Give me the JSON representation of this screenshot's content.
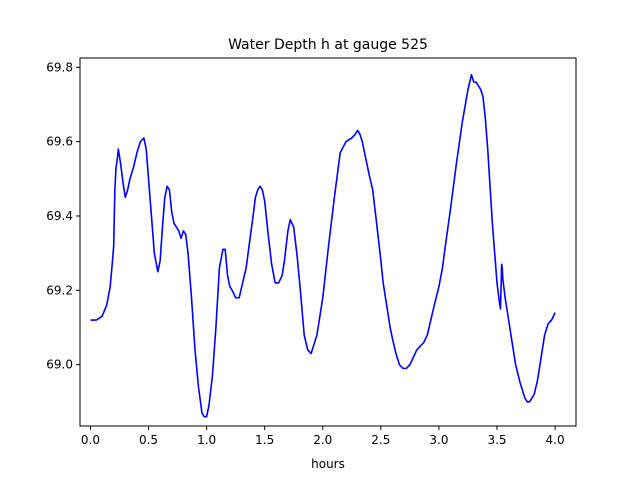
{
  "chart_data": {
    "type": "line",
    "title": "Water Depth h at gauge 525",
    "xlabel": "hours",
    "ylabel": "",
    "xlim": [
      -0.09,
      4.18
    ],
    "ylim": [
      68.835,
      69.825
    ],
    "xticks": [
      0.0,
      0.5,
      1.0,
      1.5,
      2.0,
      2.5,
      3.0,
      3.5,
      4.0
    ],
    "xtick_labels": [
      "0.0",
      "0.5",
      "1.0",
      "1.5",
      "2.0",
      "2.5",
      "3.0",
      "3.5",
      "4.0"
    ],
    "yticks": [
      69.0,
      69.2,
      69.4,
      69.6,
      69.8
    ],
    "ytick_labels": [
      "69.0",
      "69.2",
      "69.4",
      "69.6",
      "69.8"
    ],
    "grid": false,
    "series": [
      {
        "color": "#0000ff",
        "x": [
          0.0,
          0.05,
          0.1,
          0.14,
          0.17,
          0.19,
          0.2,
          0.21,
          0.22,
          0.23,
          0.24,
          0.26,
          0.28,
          0.3,
          0.32,
          0.34,
          0.37,
          0.4,
          0.43,
          0.46,
          0.48,
          0.5,
          0.52,
          0.55,
          0.58,
          0.6,
          0.62,
          0.64,
          0.66,
          0.68,
          0.7,
          0.72,
          0.74,
          0.76,
          0.78,
          0.8,
          0.82,
          0.84,
          0.87,
          0.9,
          0.93,
          0.96,
          0.98,
          1.0,
          1.02,
          1.05,
          1.08,
          1.11,
          1.14,
          1.16,
          1.18,
          1.2,
          1.22,
          1.25,
          1.28,
          1.31,
          1.34,
          1.37,
          1.4,
          1.42,
          1.44,
          1.46,
          1.48,
          1.5,
          1.53,
          1.56,
          1.59,
          1.62,
          1.65,
          1.67,
          1.7,
          1.72,
          1.75,
          1.78,
          1.81,
          1.84,
          1.87,
          1.9,
          1.95,
          2.0,
          2.05,
          2.1,
          2.15,
          2.2,
          2.25,
          2.28,
          2.3,
          2.32,
          2.34,
          2.36,
          2.38,
          2.4,
          2.43,
          2.46,
          2.5,
          2.52,
          2.55,
          2.58,
          2.6,
          2.63,
          2.66,
          2.69,
          2.72,
          2.75,
          2.78,
          2.81,
          2.84,
          2.87,
          2.9,
          2.93,
          2.96,
          3.0,
          3.03,
          3.06,
          3.1,
          3.15,
          3.2,
          3.25,
          3.28,
          3.3,
          3.32,
          3.34,
          3.36,
          3.38,
          3.4,
          3.42,
          3.44,
          3.46,
          3.48,
          3.5,
          3.52,
          3.53,
          3.54,
          3.545,
          3.55,
          3.57,
          3.6,
          3.63,
          3.66,
          3.7,
          3.72,
          3.74,
          3.76,
          3.78,
          3.8,
          3.82,
          3.85,
          3.88,
          3.91,
          3.94,
          3.97,
          4.0
        ],
        "y": [
          69.12,
          69.12,
          69.13,
          69.16,
          69.21,
          69.28,
          69.32,
          69.47,
          69.53,
          69.55,
          69.58,
          69.54,
          69.49,
          69.45,
          69.47,
          69.5,
          69.53,
          69.57,
          69.6,
          69.61,
          69.58,
          69.5,
          69.42,
          69.3,
          69.25,
          69.28,
          69.37,
          69.45,
          69.48,
          69.47,
          69.41,
          69.38,
          69.37,
          69.36,
          69.34,
          69.36,
          69.35,
          69.3,
          69.18,
          69.04,
          68.94,
          68.87,
          68.86,
          68.86,
          68.89,
          68.97,
          69.1,
          69.26,
          69.31,
          69.31,
          69.24,
          69.21,
          69.2,
          69.18,
          69.18,
          69.22,
          69.26,
          69.33,
          69.4,
          69.45,
          69.47,
          69.48,
          69.47,
          69.44,
          69.35,
          69.27,
          69.22,
          69.22,
          69.24,
          69.28,
          69.36,
          69.39,
          69.37,
          69.29,
          69.19,
          69.08,
          69.04,
          69.03,
          69.08,
          69.18,
          69.32,
          69.45,
          69.57,
          69.6,
          69.61,
          69.62,
          69.63,
          69.62,
          69.6,
          69.57,
          69.54,
          69.51,
          69.47,
          69.39,
          69.28,
          69.22,
          69.16,
          69.1,
          69.07,
          69.03,
          69.0,
          68.99,
          68.99,
          69.0,
          69.02,
          69.04,
          69.05,
          69.06,
          69.08,
          69.12,
          69.16,
          69.21,
          69.26,
          69.33,
          69.42,
          69.54,
          69.65,
          69.74,
          69.78,
          69.76,
          69.76,
          69.75,
          69.74,
          69.72,
          69.66,
          69.58,
          69.48,
          69.38,
          69.3,
          69.22,
          69.17,
          69.15,
          69.27,
          69.26,
          69.23,
          69.18,
          69.12,
          69.06,
          69.0,
          68.95,
          68.93,
          68.91,
          68.9,
          68.9,
          68.91,
          68.92,
          68.96,
          69.02,
          69.08,
          69.11,
          69.12,
          69.14
        ]
      }
    ]
  }
}
